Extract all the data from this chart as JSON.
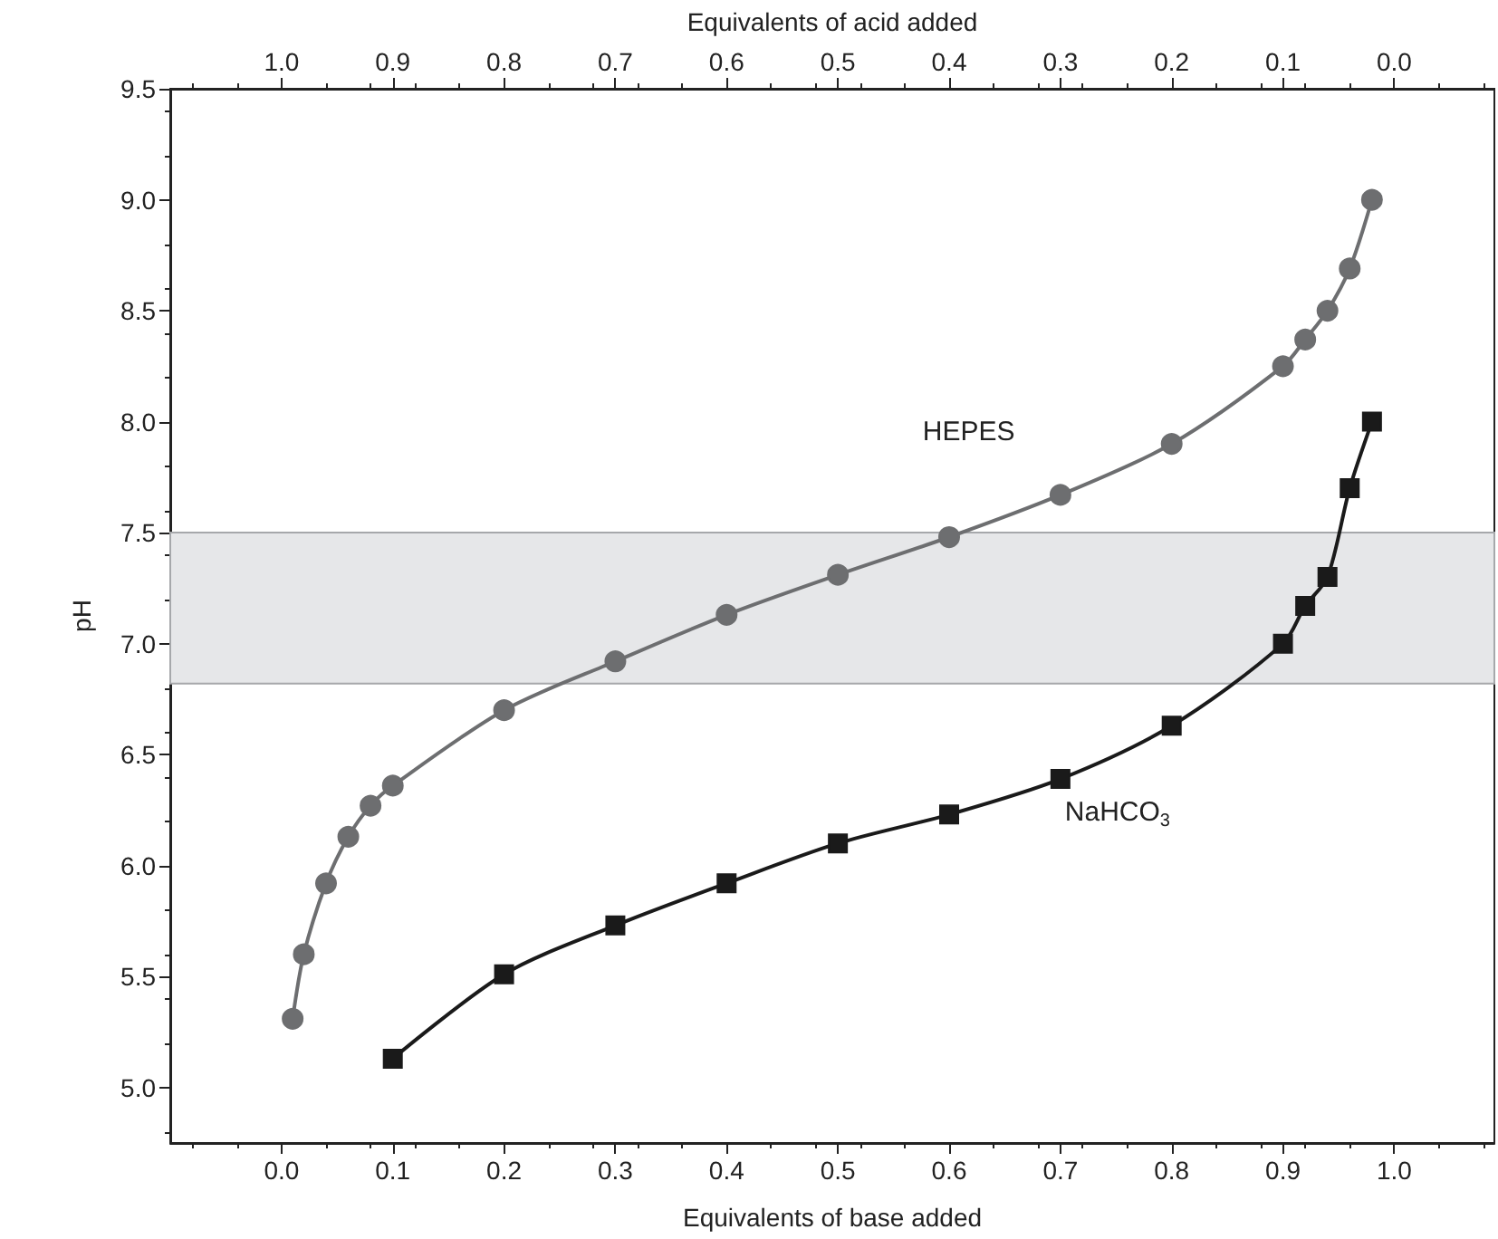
{
  "chart_data": {
    "type": "line",
    "xlabel": "Equivalents of base added",
    "ylabel": "pH",
    "x2label": "Equivalents of acid added",
    "xlim": [
      -0.1,
      1.09
    ],
    "ylim": [
      4.75,
      9.5
    ],
    "x2lim": [
      1.1,
      -0.09
    ],
    "xticks": [
      {
        "value": 0,
        "label": "0.0"
      },
      0.1,
      0.2,
      0.3,
      0.4,
      0.5,
      0.6,
      0.7,
      0.8,
      0.9,
      {
        "value": 1,
        "label": "1.0"
      }
    ],
    "x2ticks": [
      {
        "value": 1,
        "label": "1.0"
      },
      0.9,
      0.8,
      0.7,
      0.6,
      0.5,
      0.4,
      0.3,
      0.2,
      0.1,
      {
        "value": 0,
        "label": "0.0"
      }
    ],
    "yticks": [
      {
        "value": 5,
        "label": "5.0"
      },
      5.5,
      {
        "value": 6,
        "label": "6.0"
      },
      6.5,
      {
        "value": 7,
        "label": "7.0"
      },
      7.5,
      {
        "value": 8,
        "label": "8.0"
      },
      8.5,
      {
        "value": 9,
        "label": "9.0"
      },
      9.5
    ],
    "grid": false,
    "legend": false,
    "line_style": "solid",
    "bands": [
      {
        "axis": "y",
        "from": 6.82,
        "to": 7.5,
        "color": "#e6e7e9"
      }
    ],
    "series": [
      {
        "name": "HEPES",
        "color": "#6d6e70",
        "marker": "circle",
        "x": [
          0.01,
          0.02,
          0.04,
          0.06,
          0.08,
          0.1,
          0.2,
          0.3,
          0.4,
          0.5,
          0.6,
          0.7,
          0.8,
          0.9,
          0.92,
          0.94,
          0.96,
          0.98
        ],
        "values": [
          5.31,
          5.6,
          5.92,
          6.13,
          6.27,
          6.36,
          6.7,
          6.92,
          7.13,
          7.31,
          7.48,
          7.67,
          7.9,
          8.25,
          8.37,
          8.5,
          8.69,
          9.0
        ]
      },
      {
        "name": "NaHCO$_{3}$",
        "color": "#1a1a1a",
        "marker": "square",
        "x": [
          0.1,
          0.2,
          0.3,
          0.4,
          0.5,
          0.6,
          0.7,
          0.8,
          0.9,
          0.92,
          0.94,
          0.96,
          0.98
        ],
        "values": [
          5.13,
          5.51,
          5.73,
          5.92,
          6.1,
          6.23,
          6.39,
          6.63,
          7.0,
          7.17,
          7.3,
          7.7,
          8.0
        ]
      }
    ]
  }
}
